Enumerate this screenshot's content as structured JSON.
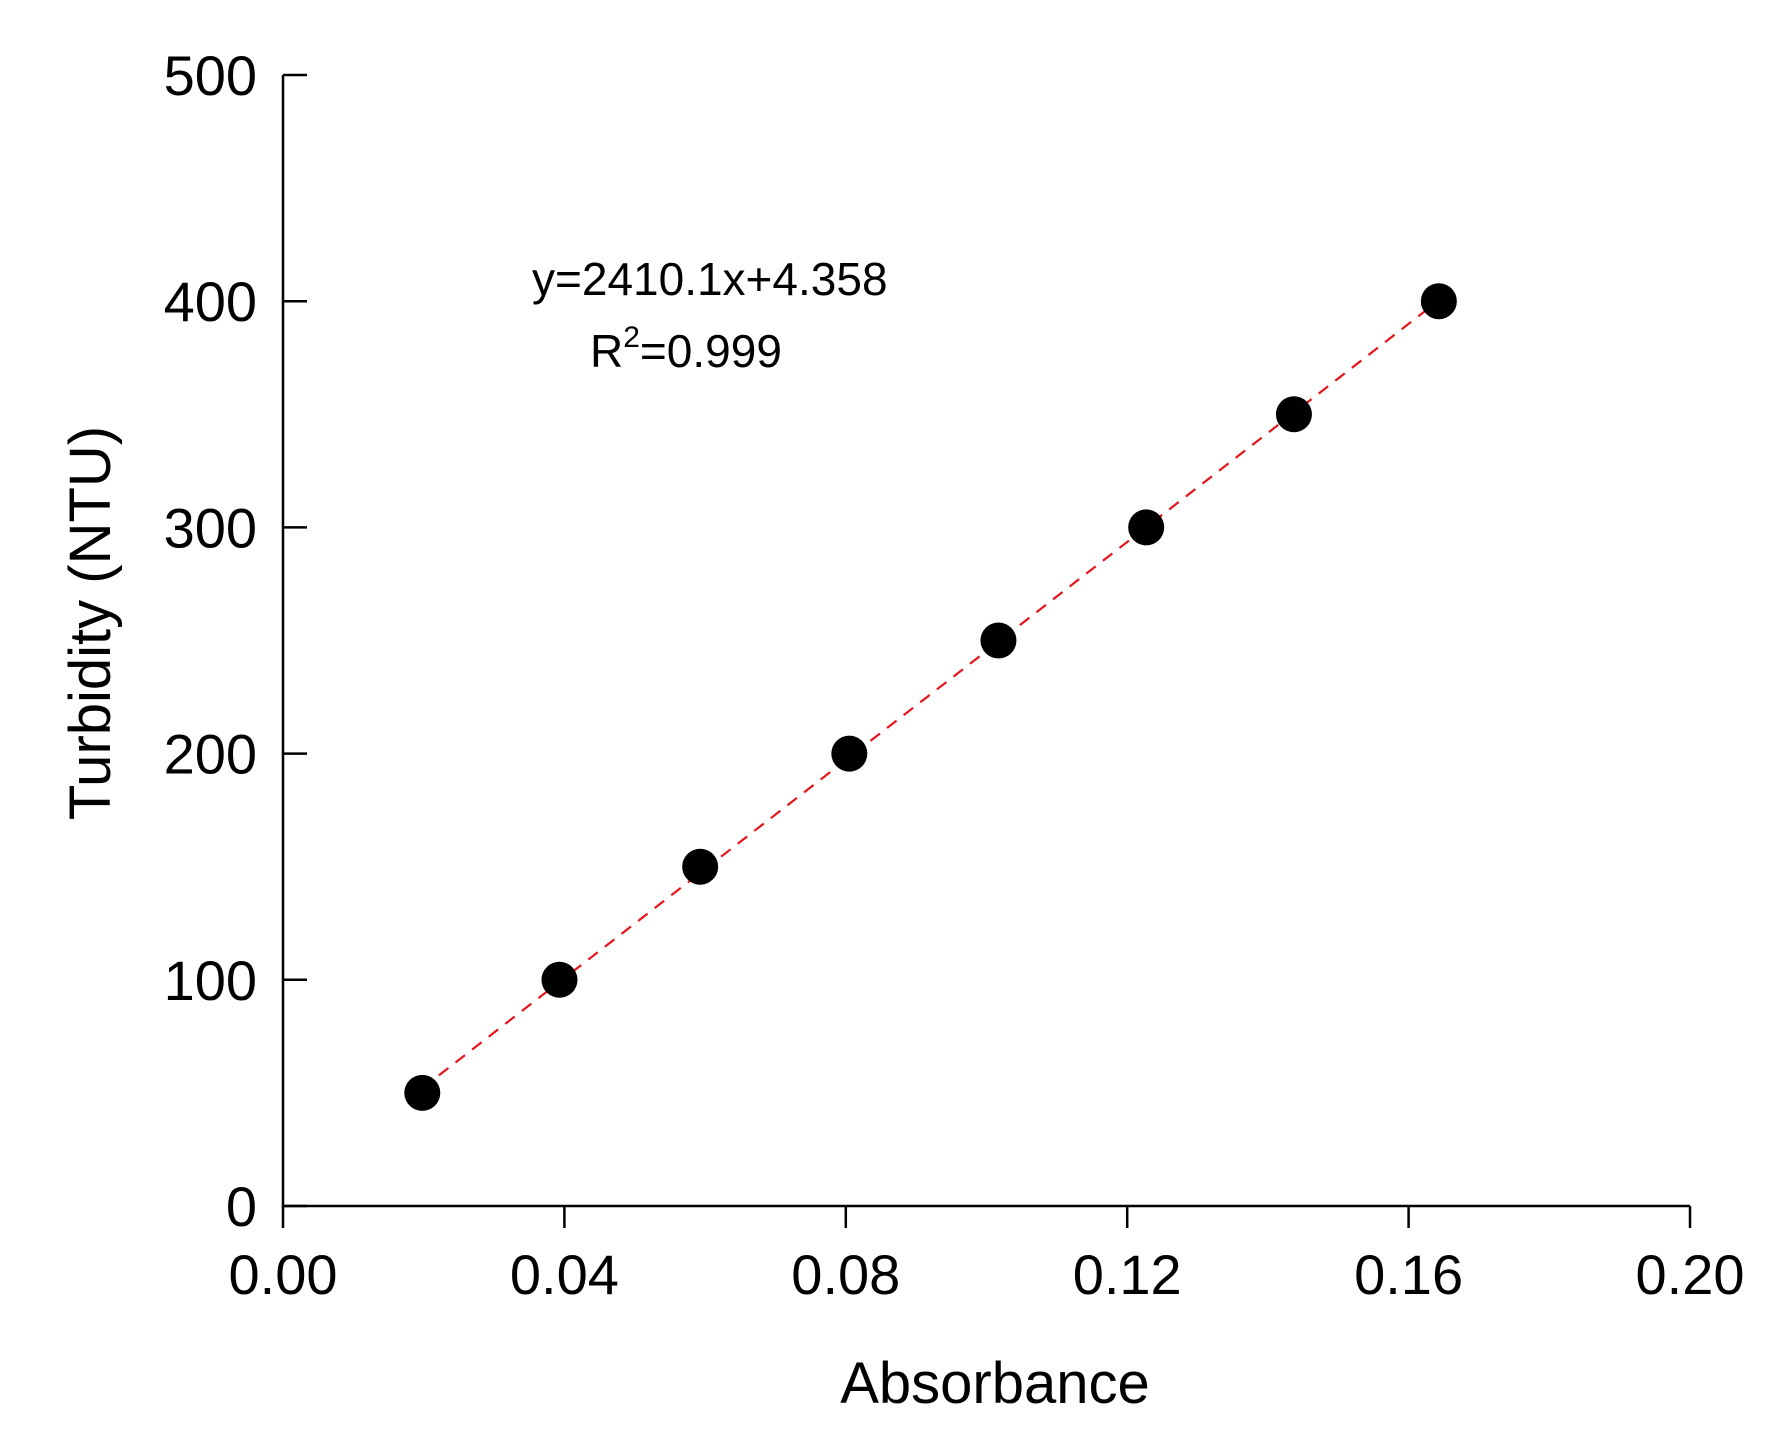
{
  "chart_data": {
    "type": "scatter",
    "title": "",
    "xlabel": "Absorbance",
    "ylabel": "Turbidity (NTU)",
    "xlim": [
      0,
      0.2
    ],
    "ylim": [
      0,
      500
    ],
    "x_ticks": [
      "0.00",
      "0.04",
      "0.08",
      "0.12",
      "0.16",
      "0.20"
    ],
    "y_ticks": [
      "0",
      "100",
      "200",
      "300",
      "400",
      "500"
    ],
    "grid": false,
    "series": [
      {
        "x": [
          0.0198,
          0.0393,
          0.0593,
          0.0805,
          0.1017,
          0.1227,
          0.1437,
          0.1643
        ],
        "y": [
          50,
          100,
          150,
          200,
          250,
          300,
          350,
          400
        ]
      }
    ],
    "fit": {
      "slope": 2410.1,
      "intercept": 4.358,
      "x_range": [
        0.0198,
        0.1643
      ],
      "equation": "y=2410.1x+4.358",
      "r2_prefix": "R",
      "r2_sup": "2",
      "r2_value": "=0.999"
    },
    "colors": {
      "points": "#000000",
      "fit_line": "#e8141c",
      "axes": "#000000"
    }
  }
}
